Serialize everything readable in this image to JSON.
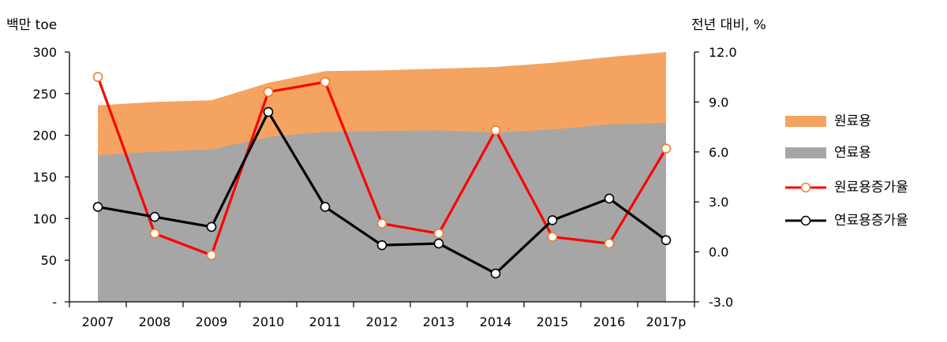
{
  "left_axis_unit": "백만 toe",
  "right_axis_unit": "전년 대비, %",
  "chart_data": {
    "type": "area",
    "categories": [
      "2007",
      "2008",
      "2009",
      "2010",
      "2011",
      "2012",
      "2013",
      "2014",
      "2015",
      "2016",
      "2017p"
    ],
    "left_ticks": [
      "-",
      "50",
      "100",
      "150",
      "200",
      "250",
      "300"
    ],
    "right_ticks": [
      "-3.0",
      "0.0",
      "3.0",
      "6.0",
      "9.0",
      "12.0"
    ],
    "ylim_left": [
      0,
      300
    ],
    "ylim_right": [
      -3,
      12
    ],
    "series": [
      {
        "name": "원료용",
        "kind": "area-stack-top",
        "axis": "left",
        "color": "#F4A460",
        "values": [
          236,
          240,
          242,
          263,
          277,
          278,
          280,
          282,
          287,
          294,
          300
        ]
      },
      {
        "name": "연료용",
        "kind": "area",
        "axis": "left",
        "color": "#A6A6A6",
        "values": [
          176,
          180,
          183,
          198,
          204,
          205,
          206,
          203,
          207,
          213,
          215
        ]
      },
      {
        "name": "원료용증가율",
        "kind": "line",
        "axis": "right",
        "color": "#FF0000",
        "marker_stroke": "#ED7D31",
        "values": [
          10.5,
          1.1,
          -0.2,
          9.6,
          10.2,
          1.7,
          1.1,
          7.3,
          0.9,
          0.5,
          6.2
        ]
      },
      {
        "name": "연료용증가율",
        "kind": "line",
        "axis": "right",
        "color": "#000000",
        "marker_stroke": "#000000",
        "values": [
          2.7,
          2.1,
          1.5,
          8.4,
          2.7,
          0.4,
          0.5,
          -1.3,
          1.9,
          3.2,
          0.7
        ]
      }
    ],
    "legend": {
      "position": "right"
    },
    "grid": false
  }
}
